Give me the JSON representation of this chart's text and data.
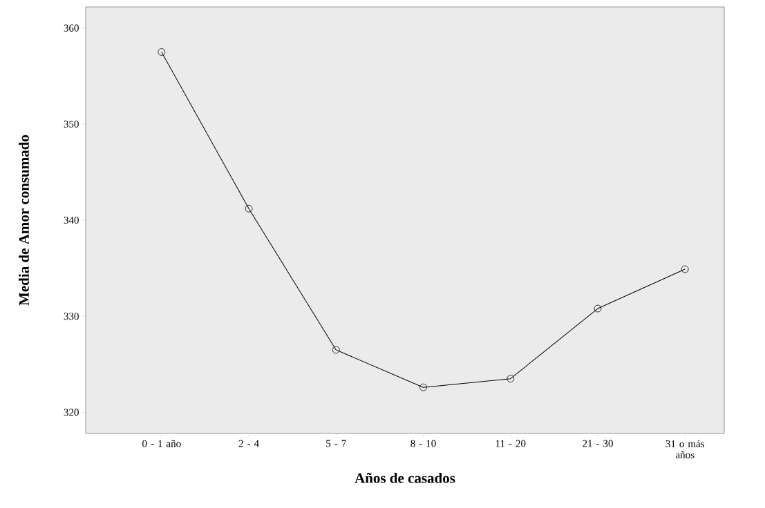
{
  "chart_data": {
    "type": "line",
    "xlabel": "Años de casados",
    "ylabel": "Media de Amor consumado",
    "categories": [
      "0 - 1 año",
      "2 - 4",
      "5 - 7",
      "8 - 10",
      "11 - 20",
      "21 - 30",
      "31 o más años"
    ],
    "values": [
      357.5,
      341.2,
      326.5,
      322.6,
      323.5,
      330.8,
      334.9
    ],
    "color": "#000000",
    "marker": "circle",
    "line_style": "solid",
    "ylim": [
      317.8,
      362.2
    ],
    "yticks": [
      320,
      330,
      340,
      350,
      360
    ],
    "grid": false
  }
}
